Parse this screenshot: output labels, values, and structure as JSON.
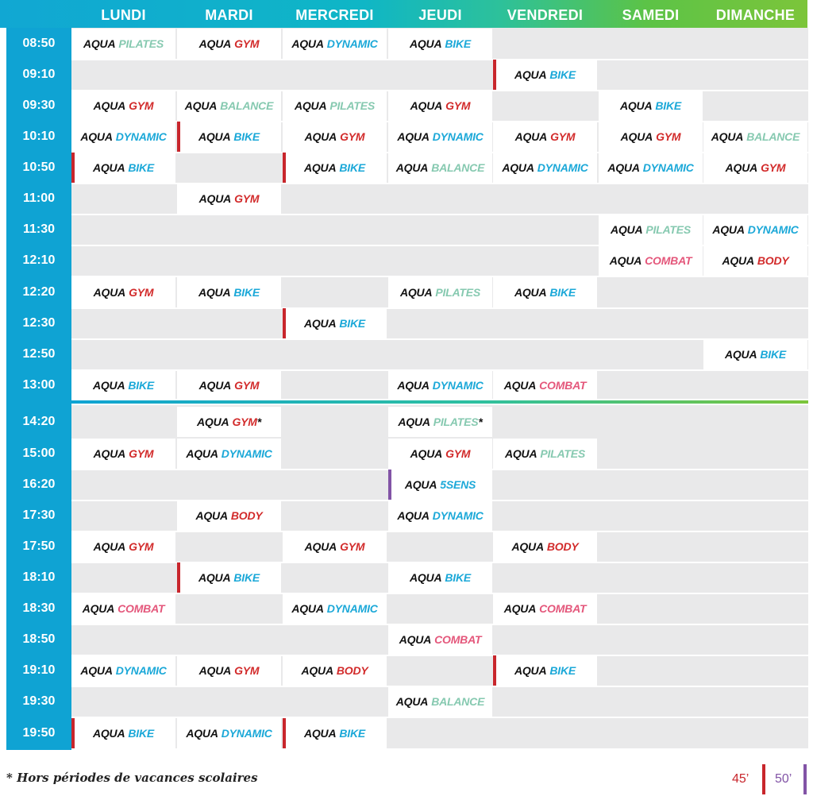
{
  "days": [
    "LUNDI",
    "MARDI",
    "MERCREDI",
    "JEUDI",
    "VENDREDI",
    "SAMEDI",
    "DIMANCHE"
  ],
  "times": [
    "08:50",
    "09:10",
    "09:30",
    "10:10",
    "10:50",
    "11:00",
    "11:30",
    "12:10",
    "12:20",
    "12:30",
    "12:50",
    "13:00",
    "14:20",
    "15:00",
    "16:20",
    "17:30",
    "17:50",
    "18:10",
    "18:30",
    "18:50",
    "19:10",
    "19:30",
    "19:50"
  ],
  "aqua_label": "AQUA",
  "sessions": [
    {
      "row": 0,
      "col": 0,
      "cls": "PILATES",
      "type": "pilates",
      "duration": ""
    },
    {
      "row": 0,
      "col": 1,
      "cls": "GYM",
      "type": "gym",
      "duration": ""
    },
    {
      "row": 0,
      "col": 2,
      "cls": "DYNAMIC",
      "type": "dynamic",
      "duration": ""
    },
    {
      "row": 0,
      "col": 3,
      "cls": "BIKE",
      "type": "bike",
      "duration": ""
    },
    {
      "row": 1,
      "col": 4,
      "cls": "BIKE",
      "type": "bike",
      "duration": "45"
    },
    {
      "row": 2,
      "col": 0,
      "cls": "GYM",
      "type": "gym",
      "duration": ""
    },
    {
      "row": 2,
      "col": 1,
      "cls": "BALANCE",
      "type": "balance",
      "duration": ""
    },
    {
      "row": 2,
      "col": 2,
      "cls": "PILATES",
      "type": "pilates",
      "duration": ""
    },
    {
      "row": 2,
      "col": 3,
      "cls": "GYM",
      "type": "gym",
      "duration": ""
    },
    {
      "row": 2,
      "col": 5,
      "cls": "BIKE",
      "type": "bike",
      "duration": ""
    },
    {
      "row": 3,
      "col": 0,
      "cls": "DYNAMIC",
      "type": "dynamic",
      "duration": ""
    },
    {
      "row": 3,
      "col": 1,
      "cls": "BIKE",
      "type": "bike",
      "duration": "45"
    },
    {
      "row": 3,
      "col": 2,
      "cls": "GYM",
      "type": "gym",
      "duration": ""
    },
    {
      "row": 3,
      "col": 3,
      "cls": "DYNAMIC",
      "type": "dynamic",
      "duration": ""
    },
    {
      "row": 3,
      "col": 4,
      "cls": "GYM",
      "type": "gym",
      "duration": ""
    },
    {
      "row": 3,
      "col": 5,
      "cls": "GYM",
      "type": "gym",
      "duration": ""
    },
    {
      "row": 3,
      "col": 6,
      "cls": "BALANCE",
      "type": "balance",
      "duration": ""
    },
    {
      "row": 4,
      "col": 0,
      "cls": "BIKE",
      "type": "bike",
      "duration": "45"
    },
    {
      "row": 4,
      "col": 2,
      "cls": "BIKE",
      "type": "bike",
      "duration": "45"
    },
    {
      "row": 4,
      "col": 3,
      "cls": "BALANCE",
      "type": "balance",
      "duration": ""
    },
    {
      "row": 4,
      "col": 4,
      "cls": "DYNAMIC",
      "type": "dynamic",
      "duration": ""
    },
    {
      "row": 4,
      "col": 5,
      "cls": "DYNAMIC",
      "type": "dynamic",
      "duration": ""
    },
    {
      "row": 4,
      "col": 6,
      "cls": "GYM",
      "type": "gym",
      "duration": ""
    },
    {
      "row": 5,
      "col": 1,
      "cls": "GYM",
      "type": "gym",
      "duration": ""
    },
    {
      "row": 6,
      "col": 5,
      "cls": "PILATES",
      "type": "pilates",
      "duration": ""
    },
    {
      "row": 6,
      "col": 6,
      "cls": "DYNAMIC",
      "type": "dynamic",
      "duration": ""
    },
    {
      "row": 7,
      "col": 5,
      "cls": "COMBAT",
      "type": "combat",
      "duration": ""
    },
    {
      "row": 7,
      "col": 6,
      "cls": "BODY",
      "type": "body",
      "duration": ""
    },
    {
      "row": 8,
      "col": 0,
      "cls": "GYM",
      "type": "gym",
      "duration": ""
    },
    {
      "row": 8,
      "col": 1,
      "cls": "BIKE",
      "type": "bike",
      "duration": ""
    },
    {
      "row": 8,
      "col": 3,
      "cls": "PILATES",
      "type": "pilates",
      "duration": ""
    },
    {
      "row": 8,
      "col": 4,
      "cls": "BIKE",
      "type": "bike",
      "duration": ""
    },
    {
      "row": 9,
      "col": 2,
      "cls": "BIKE",
      "type": "bike",
      "duration": "45"
    },
    {
      "row": 10,
      "col": 6,
      "cls": "BIKE",
      "type": "bike",
      "duration": ""
    },
    {
      "row": 11,
      "col": 0,
      "cls": "BIKE",
      "type": "bike",
      "duration": ""
    },
    {
      "row": 11,
      "col": 1,
      "cls": "GYM",
      "type": "gym",
      "duration": ""
    },
    {
      "row": 11,
      "col": 3,
      "cls": "DYNAMIC",
      "type": "dynamic",
      "duration": ""
    },
    {
      "row": 11,
      "col": 4,
      "cls": "COMBAT",
      "type": "combat",
      "duration": ""
    },
    {
      "row": 12,
      "col": 1,
      "cls": "GYM",
      "type": "gym",
      "duration": "",
      "star": "*"
    },
    {
      "row": 12,
      "col": 3,
      "cls": "PILATES",
      "type": "pilates",
      "duration": "",
      "star": "*"
    },
    {
      "row": 13,
      "col": 0,
      "cls": "GYM",
      "type": "gym",
      "duration": ""
    },
    {
      "row": 13,
      "col": 1,
      "cls": "DYNAMIC",
      "type": "dynamic",
      "duration": ""
    },
    {
      "row": 13,
      "col": 3,
      "cls": "GYM",
      "type": "gym",
      "duration": ""
    },
    {
      "row": 13,
      "col": 4,
      "cls": "PILATES",
      "type": "pilates",
      "duration": ""
    },
    {
      "row": 14,
      "col": 3,
      "cls": "5SENS",
      "type": "5sens",
      "duration": "50"
    },
    {
      "row": 15,
      "col": 1,
      "cls": "BODY",
      "type": "body",
      "duration": ""
    },
    {
      "row": 15,
      "col": 3,
      "cls": "DYNAMIC",
      "type": "dynamic",
      "duration": ""
    },
    {
      "row": 16,
      "col": 0,
      "cls": "GYM",
      "type": "gym",
      "duration": ""
    },
    {
      "row": 16,
      "col": 2,
      "cls": "GYM",
      "type": "gym",
      "duration": ""
    },
    {
      "row": 16,
      "col": 4,
      "cls": "BODY",
      "type": "body",
      "duration": ""
    },
    {
      "row": 17,
      "col": 1,
      "cls": "BIKE",
      "type": "bike",
      "duration": "45"
    },
    {
      "row": 17,
      "col": 3,
      "cls": "BIKE",
      "type": "bike",
      "duration": ""
    },
    {
      "row": 18,
      "col": 0,
      "cls": "COMBAT",
      "type": "combat",
      "duration": ""
    },
    {
      "row": 18,
      "col": 2,
      "cls": "DYNAMIC",
      "type": "dynamic",
      "duration": ""
    },
    {
      "row": 18,
      "col": 4,
      "cls": "COMBAT",
      "type": "combat",
      "duration": ""
    },
    {
      "row": 19,
      "col": 3,
      "cls": "COMBAT",
      "type": "combat",
      "duration": ""
    },
    {
      "row": 20,
      "col": 0,
      "cls": "DYNAMIC",
      "type": "dynamic",
      "duration": ""
    },
    {
      "row": 20,
      "col": 1,
      "cls": "GYM",
      "type": "gym",
      "duration": ""
    },
    {
      "row": 20,
      "col": 2,
      "cls": "BODY",
      "type": "body",
      "duration": ""
    },
    {
      "row": 20,
      "col": 4,
      "cls": "BIKE",
      "type": "bike",
      "duration": "45"
    },
    {
      "row": 21,
      "col": 3,
      "cls": "BALANCE",
      "type": "balance",
      "duration": ""
    },
    {
      "row": 22,
      "col": 0,
      "cls": "BIKE",
      "type": "bike",
      "duration": "45"
    },
    {
      "row": 22,
      "col": 1,
      "cls": "DYNAMIC",
      "type": "dynamic",
      "duration": ""
    },
    {
      "row": 22,
      "col": 2,
      "cls": "BIKE",
      "type": "bike",
      "duration": "45"
    }
  ],
  "footnote": "* Hors périodes de vacances scolaires",
  "legend": {
    "d45": "45’",
    "d50": "50’"
  },
  "colors": {
    "header_start": "#11a7d3",
    "header_end": "#7cc53a",
    "time_column": "#0fa3d3",
    "empty_cell": "#e9e9ea",
    "marker_45": "#c8262c",
    "marker_50": "#8254a6"
  }
}
